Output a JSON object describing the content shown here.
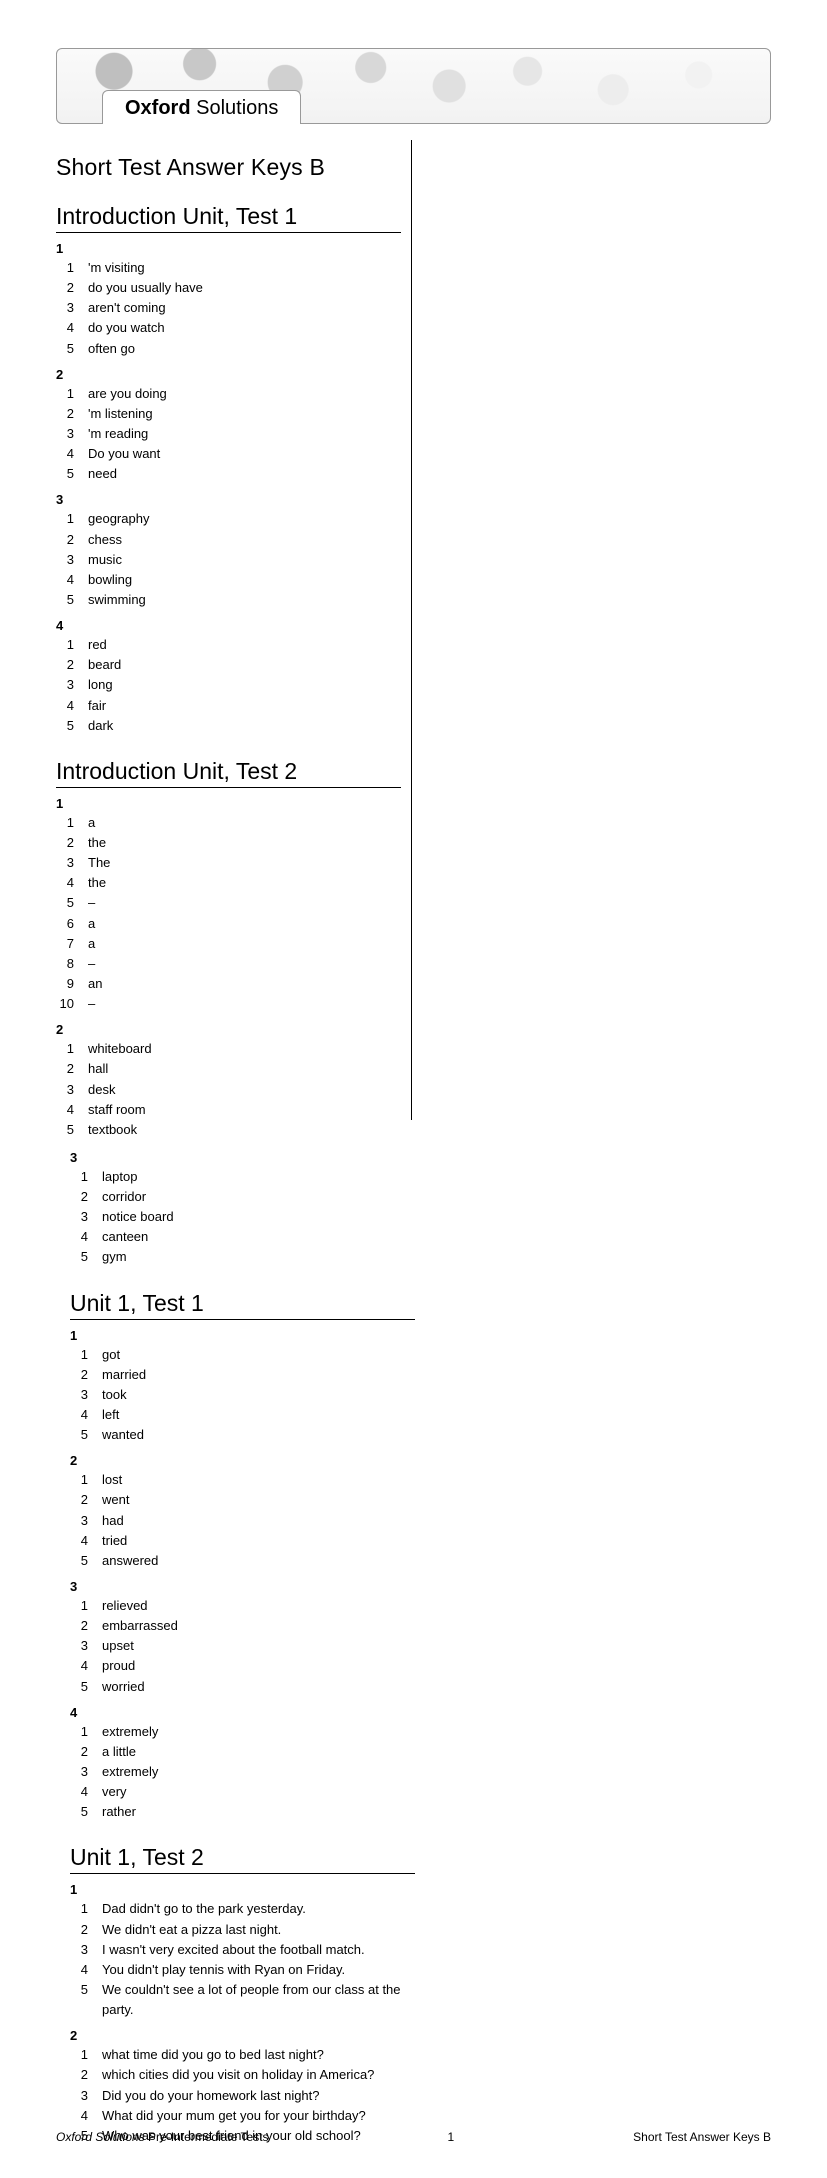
{
  "brand": {
    "bold": "Oxford",
    "light": " Solutions"
  },
  "page_title": "Short Test Answer Keys B",
  "footer": {
    "left_italic": "Oxford Solutions",
    "left_rest": " Pre-Intermediate Tests",
    "page_number": "1",
    "right": "Short Test Answer Keys B"
  },
  "flow": [
    {
      "type": "page_title"
    },
    {
      "type": "section",
      "title": "Introduction Unit, Test 1"
    },
    {
      "type": "group",
      "num": "1",
      "items": [
        [
          "1",
          "'m visiting"
        ],
        [
          "2",
          "do you usually have"
        ],
        [
          "3",
          "aren't coming"
        ],
        [
          "4",
          "do you watch"
        ],
        [
          "5",
          "often go"
        ]
      ]
    },
    {
      "type": "group",
      "num": "2",
      "items": [
        [
          "1",
          "are you doing"
        ],
        [
          "2",
          "'m listening"
        ],
        [
          "3",
          "'m reading"
        ],
        [
          "4",
          "Do you want"
        ],
        [
          "5",
          "need"
        ]
      ]
    },
    {
      "type": "group",
      "num": "3",
      "items": [
        [
          "1",
          "geography"
        ],
        [
          "2",
          "chess"
        ],
        [
          "3",
          "music"
        ],
        [
          "4",
          "bowling"
        ],
        [
          "5",
          "swimming"
        ]
      ]
    },
    {
      "type": "group",
      "num": "4",
      "items": [
        [
          "1",
          "red"
        ],
        [
          "2",
          "beard"
        ],
        [
          "3",
          "long"
        ],
        [
          "4",
          "fair"
        ],
        [
          "5",
          "dark"
        ]
      ]
    },
    {
      "type": "section",
      "title": "Introduction Unit, Test 2"
    },
    {
      "type": "group",
      "num": "1",
      "items": [
        [
          "1",
          "a"
        ],
        [
          "2",
          "the"
        ],
        [
          "3",
          "The"
        ],
        [
          "4",
          "the"
        ],
        [
          "5",
          "–"
        ],
        [
          "6",
          "a"
        ],
        [
          "7",
          "a"
        ],
        [
          "8",
          "–"
        ],
        [
          "9",
          "an"
        ],
        [
          "10",
          "–"
        ]
      ]
    },
    {
      "type": "group",
      "num": "2",
      "items": [
        [
          "1",
          "whiteboard"
        ],
        [
          "2",
          "hall"
        ],
        [
          "3",
          "desk"
        ],
        [
          "4",
          "staff room"
        ],
        [
          "5",
          "textbook"
        ]
      ]
    },
    {
      "type": "colbreak"
    },
    {
      "type": "group",
      "num": "3",
      "items": [
        [
          "1",
          "laptop"
        ],
        [
          "2",
          "corridor"
        ],
        [
          "3",
          "notice board"
        ],
        [
          "4",
          "canteen"
        ],
        [
          "5",
          "gym"
        ]
      ]
    },
    {
      "type": "section",
      "title": "Unit 1, Test 1"
    },
    {
      "type": "group",
      "num": "1",
      "items": [
        [
          "1",
          "got"
        ],
        [
          "2",
          "married"
        ],
        [
          "3",
          "took"
        ],
        [
          "4",
          "left"
        ],
        [
          "5",
          "wanted"
        ]
      ]
    },
    {
      "type": "group",
      "num": "2",
      "items": [
        [
          "1",
          "lost"
        ],
        [
          "2",
          "went"
        ],
        [
          "3",
          "had"
        ],
        [
          "4",
          "tried"
        ],
        [
          "5",
          "answered"
        ]
      ]
    },
    {
      "type": "group",
      "num": "3",
      "items": [
        [
          "1",
          "relieved"
        ],
        [
          "2",
          "embarrassed"
        ],
        [
          "3",
          "upset"
        ],
        [
          "4",
          "proud"
        ],
        [
          "5",
          "worried"
        ]
      ]
    },
    {
      "type": "group",
      "num": "4",
      "items": [
        [
          "1",
          "extremely"
        ],
        [
          "2",
          "a little"
        ],
        [
          "3",
          "extremely"
        ],
        [
          "4",
          "very"
        ],
        [
          "5",
          "rather"
        ]
      ]
    },
    {
      "type": "section",
      "title": "Unit 1, Test 2"
    },
    {
      "type": "group",
      "num": "1",
      "items": [
        [
          "1",
          "Dad didn't go to the park yesterday."
        ],
        [
          "2",
          "We didn't eat a pizza last night."
        ],
        [
          "3",
          "I wasn't very excited about the football match."
        ],
        [
          "4",
          "You didn't play tennis with Ryan on Friday."
        ],
        [
          "5",
          "We couldn't see a lot of people from our class at the party."
        ]
      ]
    },
    {
      "type": "group",
      "num": "2",
      "items": [
        [
          "1",
          "what time did you go to bed last night?"
        ],
        [
          "2",
          "which cities did you visit on holiday in America?"
        ],
        [
          "3",
          "Did you do your homework last night?"
        ],
        [
          "4",
          "What did your mum get you for your birthday?"
        ],
        [
          "5",
          "Who was your best friend in your old school?"
        ]
      ]
    }
  ]
}
